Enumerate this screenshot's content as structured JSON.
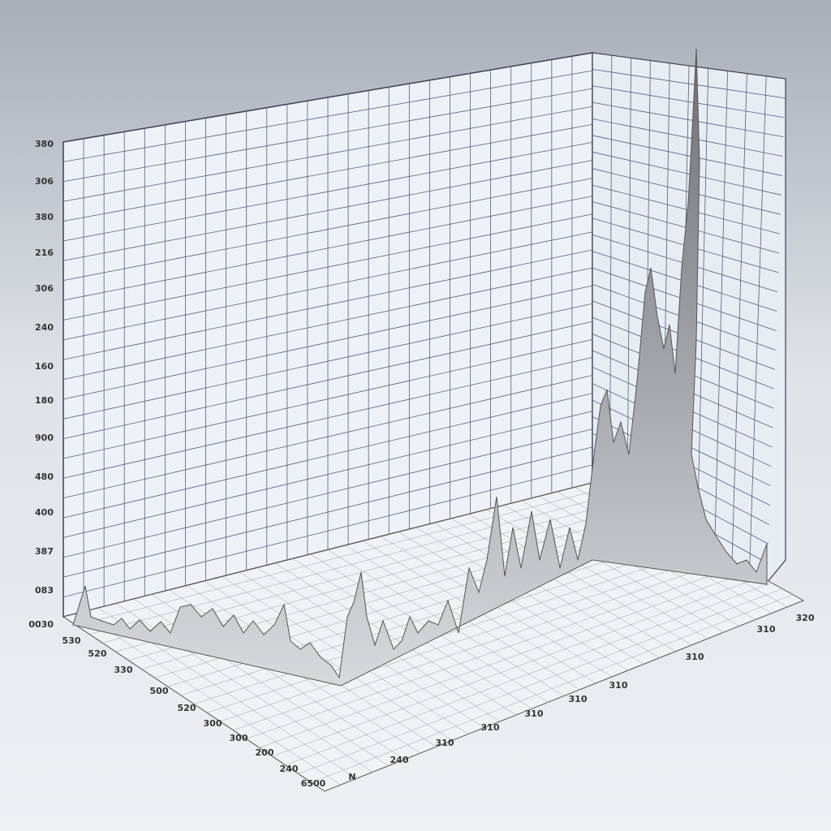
{
  "left_axis_labels": [
    "380",
    "306",
    "380",
    "216",
    "306",
    "240",
    "160",
    "180",
    "900",
    "480",
    "400",
    "387",
    "083",
    "0030"
  ],
  "front_axis_labels": [
    "530",
    "520",
    "330",
    "500",
    "520",
    "300",
    "300",
    "200",
    "240",
    "6500"
  ],
  "right_axis_labels": [
    "N",
    "240",
    "310",
    "310",
    "310",
    "310",
    "310",
    "310",
    "310",
    "320"
  ]
}
